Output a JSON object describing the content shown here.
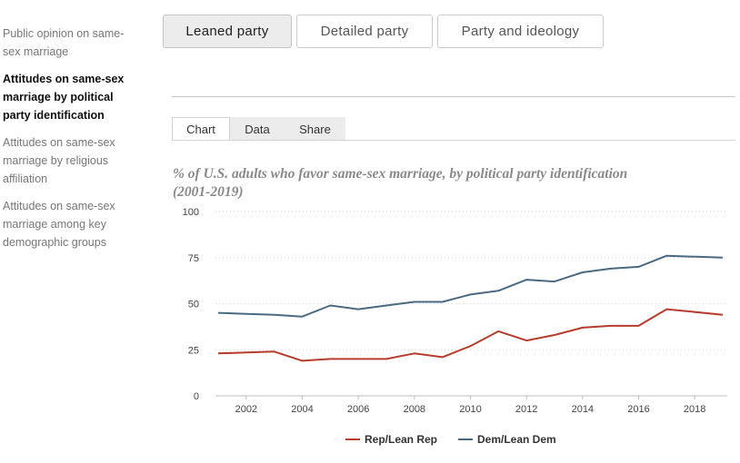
{
  "sidebar": {
    "items": [
      {
        "label": "Public opinion on same-sex marriage",
        "active": false
      },
      {
        "label": "Attitudes on same-sex marriage by political party identification",
        "active": true
      },
      {
        "label": "Attitudes on same-sex marriage by religious affiliation",
        "active": false
      },
      {
        "label": "Attitudes on same-sex marriage among key demographic groups",
        "active": false
      }
    ]
  },
  "view_tabs": [
    {
      "label": "Leaned party",
      "active": true
    },
    {
      "label": "Detailed party",
      "active": false
    },
    {
      "label": "Party and ideology",
      "active": false
    }
  ],
  "sub_tabs": [
    {
      "label": "Chart",
      "active": true
    },
    {
      "label": "Data",
      "active": false
    },
    {
      "label": "Share",
      "active": false
    }
  ],
  "chart_data": {
    "type": "line",
    "title": "% of U.S. adults who favor same-sex marriage, by political party identification (2001-2019)",
    "xlabel": "",
    "ylabel": "",
    "x": [
      2001,
      2002,
      2003,
      2004,
      2005,
      2006,
      2007,
      2008,
      2009,
      2010,
      2011,
      2012,
      2013,
      2014,
      2015,
      2016,
      2017,
      2019
    ],
    "xlim": [
      2001,
      2019
    ],
    "ylim": [
      0,
      100
    ],
    "x_ticks": [
      "2002",
      "2004",
      "2006",
      "2008",
      "2010",
      "2012",
      "2014",
      "2016",
      "2018"
    ],
    "y_ticks": [
      "0",
      "25",
      "50",
      "75",
      "100"
    ],
    "grid": "horizontal dotted",
    "legend_position": "bottom",
    "series": [
      {
        "name": "Rep/Lean Rep",
        "color": "#b83c2c",
        "values": [
          23,
          23.5,
          24,
          19,
          20,
          20,
          20,
          23,
          21,
          27,
          35,
          30,
          33,
          37,
          38,
          38,
          47,
          44
        ]
      },
      {
        "name": "Dem/Lean Dem",
        "color": "#4a6a82",
        "values": [
          45,
          44.5,
          44,
          43,
          49,
          47,
          49,
          51,
          51,
          55,
          57,
          63,
          62,
          67,
          69,
          70,
          76,
          75
        ]
      }
    ]
  }
}
